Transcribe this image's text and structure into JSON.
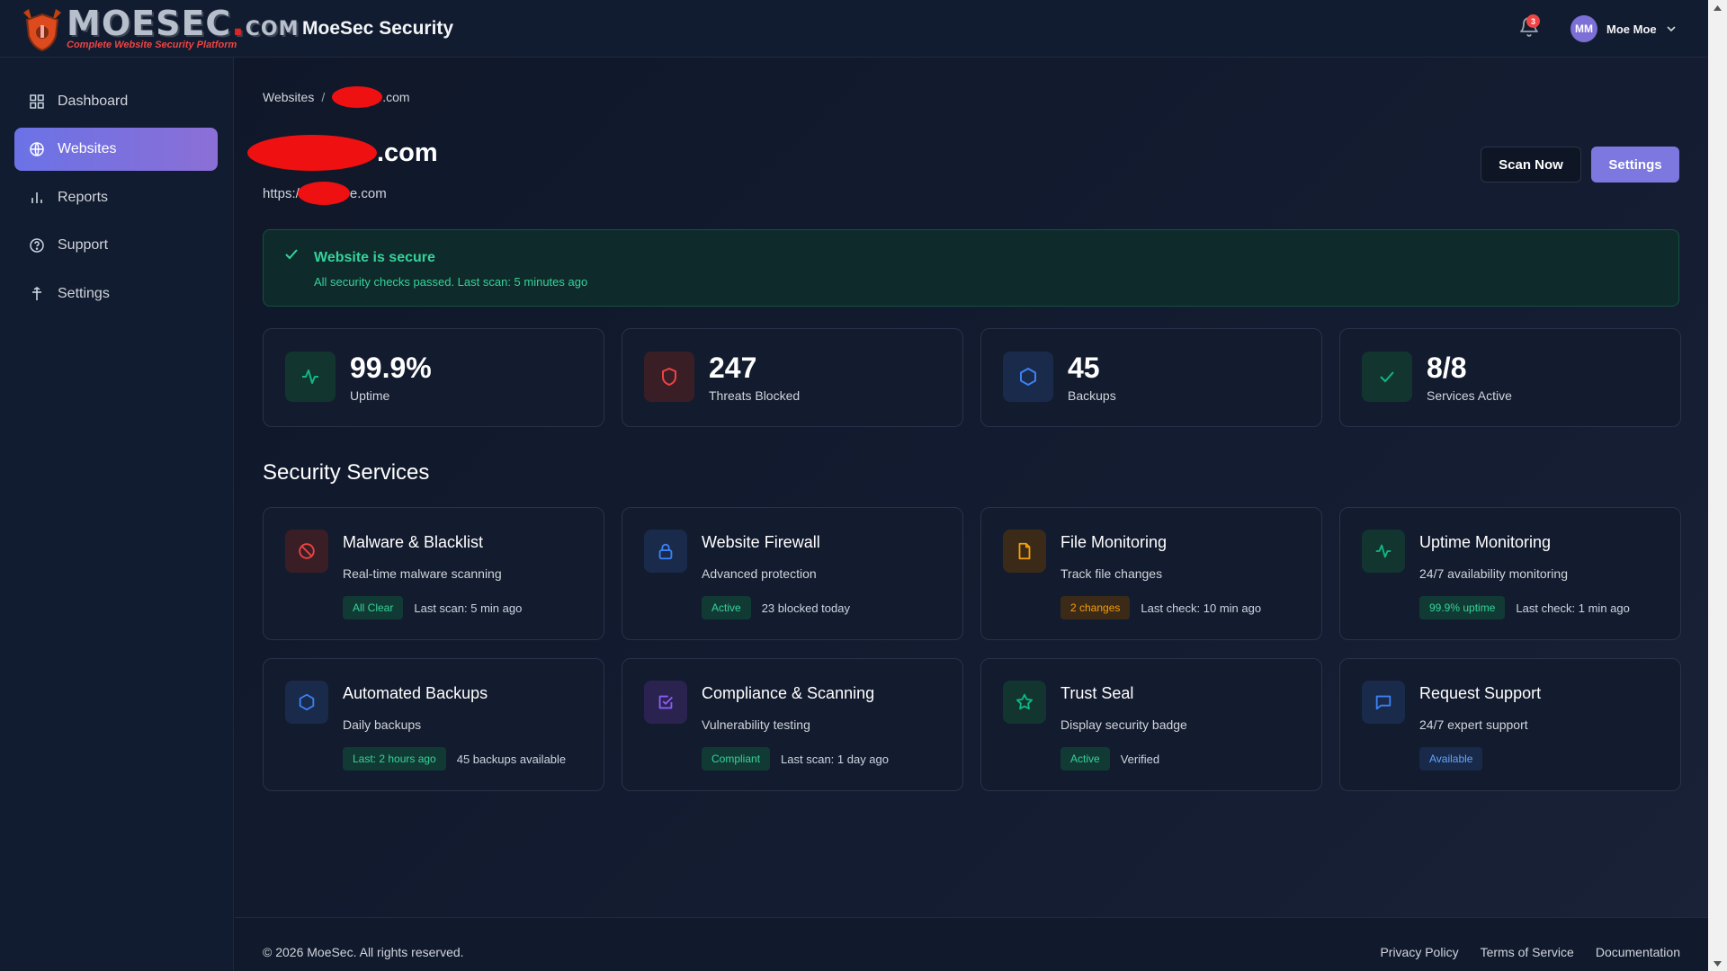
{
  "header": {
    "logo_word": "MOESEC",
    "logo_dot": ".",
    "logo_com": "COM",
    "logo_tagline": "Complete Website Security Platform",
    "app_title": "MoeSec Security",
    "notification_count": "3",
    "user_initials": "MM",
    "user_name": "Moe Moe"
  },
  "sidebar": {
    "items": [
      {
        "label": "Dashboard",
        "icon": "grid-icon"
      },
      {
        "label": "Websites",
        "icon": "globe-icon",
        "active": true
      },
      {
        "label": "Reports",
        "icon": "bar-chart-icon"
      },
      {
        "label": "Support",
        "icon": "help-circle-icon"
      },
      {
        "label": "Settings",
        "icon": "settings-icon"
      }
    ]
  },
  "main": {
    "breadcrumb": {
      "root": "Websites",
      "separator": "/",
      "current_suffix": ".com"
    },
    "site_title_suffix": ".com",
    "site_url_prefix": "https:/",
    "site_url_suffix": "e.com",
    "scan_button": "Scan Now",
    "settings_button": "Settings",
    "alert": {
      "title": "Website is secure",
      "text": "All security checks passed. Last scan: 5 minutes ago"
    },
    "stats": [
      {
        "value": "99.9%",
        "label": "Uptime",
        "icon": "activity-icon",
        "color": "#10b981"
      },
      {
        "value": "247",
        "label": "Threats Blocked",
        "icon": "shield-icon",
        "color": "#ef4444"
      },
      {
        "value": "45",
        "label": "Backups",
        "icon": "hexagon-icon",
        "color": "#3b82f6"
      },
      {
        "value": "8/8",
        "label": "Services Active",
        "icon": "check-icon",
        "color": "#10b981"
      }
    ],
    "section_title": "Security Services",
    "services": [
      {
        "title": "Malware & Blacklist",
        "desc": "Real-time malware scanning",
        "badge": "All Clear",
        "badge_color": "green",
        "note": "Last scan: 5 min ago",
        "icon": "ban-icon"
      },
      {
        "title": "Website Firewall",
        "desc": "Advanced protection",
        "badge": "Active",
        "badge_color": "green",
        "note": "23 blocked today",
        "icon": "lock-icon"
      },
      {
        "title": "File Monitoring",
        "desc": "Track file changes",
        "badge": "2 changes",
        "badge_color": "orange",
        "note": "Last check: 10 min ago",
        "icon": "file-icon"
      },
      {
        "title": "Uptime Monitoring",
        "desc": "24/7 availability monitoring",
        "badge": "99.9% uptime",
        "badge_color": "green",
        "note": "Last check: 1 min ago",
        "icon": "activity-icon"
      },
      {
        "title": "Automated Backups",
        "desc": "Daily backups",
        "badge": "Last: 2 hours ago",
        "badge_color": "green",
        "note": "45 backups available",
        "icon": "hexagon-icon"
      },
      {
        "title": "Compliance & Scanning",
        "desc": "Vulnerability testing",
        "badge": "Compliant",
        "badge_color": "green",
        "note": "Last scan: 1 day ago",
        "icon": "check-square-icon"
      },
      {
        "title": "Trust Seal",
        "desc": "Display security badge",
        "badge": "Active",
        "badge_color": "green",
        "note": "Verified",
        "icon": "star-icon"
      },
      {
        "title": "Request Support",
        "desc": "24/7 expert support",
        "badge": "Available",
        "badge_color": "blue",
        "note": "",
        "icon": "message-square-icon"
      }
    ]
  },
  "footer": {
    "copyright": "© 2026 MoeSec. All rights reserved.",
    "links": [
      "Privacy Policy",
      "Terms of Service",
      "Documentation"
    ]
  }
}
